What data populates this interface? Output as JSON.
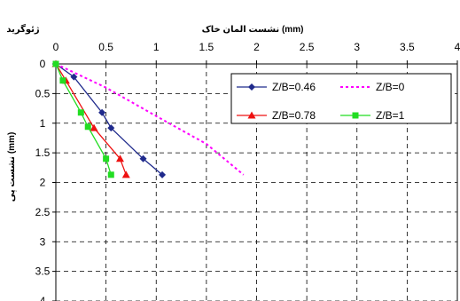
{
  "chart_data": {
    "type": "line",
    "title_top": "نشست المان خاک (mm)",
    "corner_label": "ژئوگرید",
    "ylabel": "نشست پی (mm)",
    "xlim": [
      0,
      4
    ],
    "ylim": [
      0,
      4
    ],
    "y_inverted": true,
    "x_ticks": [
      "0",
      "0.5",
      "1",
      "1.5",
      "2",
      "2.5",
      "3",
      "3.5",
      "4"
    ],
    "y_ticks": [
      "0",
      "0.5",
      "1",
      "1.5",
      "2",
      "2.5",
      "3",
      "3.5",
      "4"
    ],
    "grid": "dashed",
    "legend_position": "top-right",
    "series": [
      {
        "name": "Z/B=0.46",
        "color": "#1f2a8c",
        "marker": "diamond",
        "dash": false,
        "points": [
          [
            0,
            0
          ],
          [
            0.18,
            0.22
          ],
          [
            0.46,
            0.82
          ],
          [
            0.55,
            1.08
          ],
          [
            0.87,
            1.6
          ],
          [
            1.06,
            1.87
          ]
        ]
      },
      {
        "name": "Z/B=0",
        "color": "#ff00ff",
        "marker": "none",
        "dash": true,
        "points": [
          [
            0,
            0
          ],
          [
            0.5,
            0.4
          ],
          [
            1.0,
            0.88
          ],
          [
            1.5,
            1.35
          ],
          [
            1.87,
            1.87
          ]
        ]
      },
      {
        "name": "Z/B=0.78",
        "color": "#ee1111",
        "marker": "triangle",
        "dash": false,
        "points": [
          [
            0,
            0
          ],
          [
            0.1,
            0.28
          ],
          [
            0.38,
            1.08
          ],
          [
            0.64,
            1.6
          ],
          [
            0.7,
            1.87
          ]
        ]
      },
      {
        "name": "Z/B=1",
        "color": "#22dd22",
        "marker": "square",
        "dash": false,
        "points": [
          [
            0,
            0
          ],
          [
            0.07,
            0.28
          ],
          [
            0.25,
            0.82
          ],
          [
            0.32,
            1.06
          ],
          [
            0.5,
            1.6
          ],
          [
            0.55,
            1.87
          ]
        ]
      }
    ]
  }
}
